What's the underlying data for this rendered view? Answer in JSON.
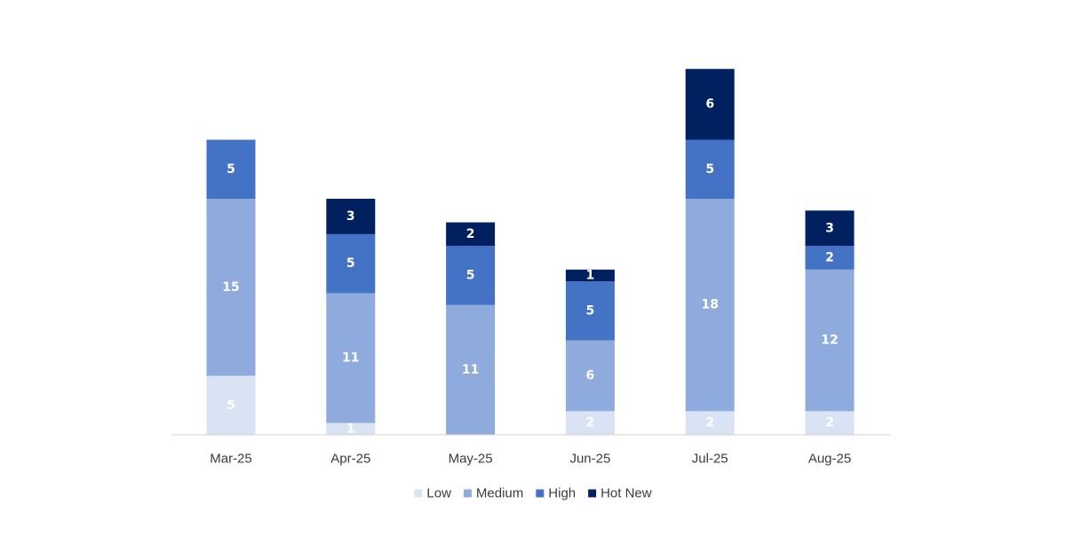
{
  "chart_data": {
    "type": "bar",
    "stacked": true,
    "categories": [
      "Mar-25",
      "Apr-25",
      "May-25",
      "Jun-25",
      "Jul-25",
      "Aug-25"
    ],
    "series": [
      {
        "name": "Low",
        "color": "#dae3f3",
        "values": [
          5,
          1,
          0,
          2,
          2,
          2
        ]
      },
      {
        "name": "Medium",
        "color": "#8faadc",
        "values": [
          15,
          11,
          11,
          6,
          18,
          12
        ]
      },
      {
        "name": "High",
        "color": "#4472c4",
        "values": [
          5,
          5,
          5,
          5,
          5,
          2
        ]
      },
      {
        "name": "Hot New",
        "color": "#002060",
        "values": [
          0,
          3,
          2,
          1,
          6,
          3
        ]
      }
    ],
    "ylim": [
      0,
      31
    ],
    "grid": false,
    "legend_position": "bottom",
    "title": "",
    "xlabel": "",
    "ylabel": ""
  }
}
